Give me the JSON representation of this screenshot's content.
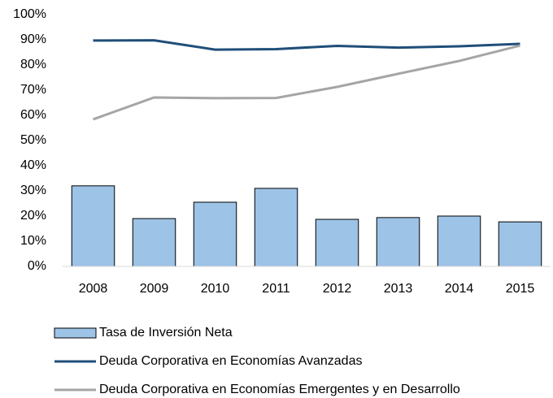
{
  "chart_data": {
    "type": "bar",
    "categories": [
      "2008",
      "2009",
      "2010",
      "2011",
      "2012",
      "2013",
      "2014",
      "2015"
    ],
    "series": [
      {
        "name": "Tasa de Inversión Neta",
        "type": "bar",
        "color": "#9dc3e6",
        "values": [
          32,
          19,
          25.5,
          31,
          18.7,
          19.4,
          20,
          17.7
        ]
      },
      {
        "name": "Deuda Corporativa en Economías Avanzadas",
        "type": "line",
        "color": "#1f4e79",
        "values": [
          89.7,
          89.8,
          86.1,
          86.3,
          87.6,
          86.9,
          87.4,
          88.4
        ]
      },
      {
        "name": "Deuda Corporativa en Economías Emergentes y en Desarrollo",
        "type": "line",
        "color": "#a5a5a5",
        "values": [
          58.4,
          67.1,
          66.8,
          66.9,
          71.3,
          76.5,
          81.6,
          87.7
        ]
      }
    ],
    "ylim": [
      0,
      100
    ],
    "yticks": [
      {
        "value": 0,
        "label": "0%"
      },
      {
        "value": 10,
        "label": "10%"
      },
      {
        "value": 20,
        "label": "20%"
      },
      {
        "value": 30,
        "label": "30%"
      },
      {
        "value": 40,
        "label": "40%"
      },
      {
        "value": 50,
        "label": "50%"
      },
      {
        "value": 60,
        "label": "60%"
      },
      {
        "value": 70,
        "label": "70%"
      },
      {
        "value": 80,
        "label": "80%"
      },
      {
        "value": 90,
        "label": "90%"
      },
      {
        "value": 100,
        "label": "100%"
      }
    ],
    "grid": false,
    "legend": "bottom"
  }
}
